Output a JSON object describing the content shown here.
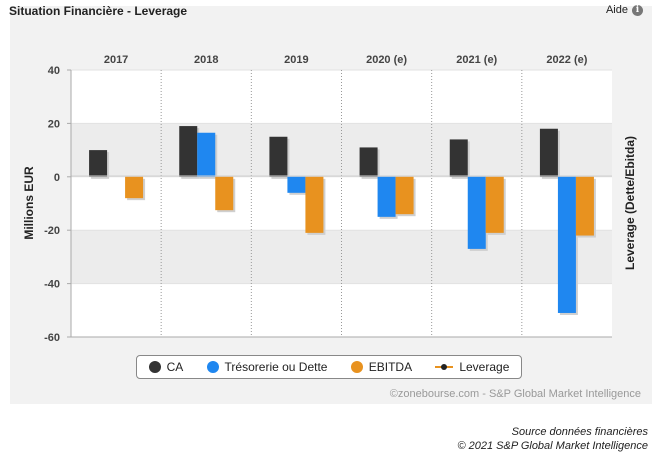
{
  "header": {
    "title": "Situation Financière - Leverage",
    "help_label": "Aide",
    "help_icon": "i"
  },
  "colors": {
    "ca": "#333333",
    "treso": "#1f87f0",
    "ebitda": "#e8921f",
    "leverage": "#222222"
  },
  "legend": [
    {
      "label": "CA",
      "icon": "dot-dark"
    },
    {
      "label": "Trésorerie ou Dette",
      "icon": "dot-blue"
    },
    {
      "label": "EBITDA",
      "icon": "dot-orange"
    },
    {
      "label": "Leverage",
      "icon": "line-with-point"
    }
  ],
  "chart_data": {
    "type": "bar",
    "categories": [
      "2017",
      "2018",
      "2019",
      "2020 (e)",
      "2021 (e)",
      "2022 (e)"
    ],
    "series": [
      {
        "name": "CA",
        "values": [
          10,
          19,
          15,
          11,
          14,
          18
        ]
      },
      {
        "name": "Trésorerie ou Dette",
        "values": [
          null,
          16.5,
          -6,
          -15,
          -27,
          -51
        ]
      },
      {
        "name": "EBITDA",
        "values": [
          -8,
          -12.5,
          -21,
          -14,
          -21,
          -22
        ]
      }
    ],
    "ylabel": "Millions EUR",
    "y2label": "Leverage (Dette/Ebitda)",
    "ylim": [
      -60,
      40
    ],
    "yticks": [
      "40",
      "20",
      "0",
      "-20",
      "-40",
      "-60"
    ],
    "grid": true,
    "legend_position": "bottom"
  },
  "footer": {
    "copyright": "©zonebourse.com - S&P Global Market Intelligence",
    "source_line1": "Source données financières",
    "source_line2": "© 2021 S&P Global Market Intelligence"
  }
}
